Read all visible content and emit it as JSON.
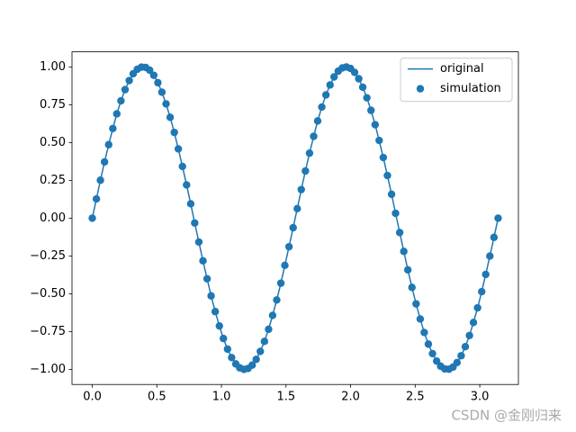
{
  "chart_data": {
    "type": "line",
    "legend": "upper right",
    "watermark": "CSDN @金刚归来",
    "xlim": [
      -0.157,
      3.299
    ],
    "ylim": [
      -1.1,
      1.1
    ],
    "xticks": [
      {
        "value": 0,
        "label": "0.0"
      },
      0.5,
      {
        "value": 1,
        "label": "1.0"
      },
      1.5,
      {
        "value": 2,
        "label": "2.0"
      },
      2.5,
      {
        "value": 3,
        "label": "3.0"
      }
    ],
    "yticks": [
      {
        "value": -1,
        "label": "−1.00"
      },
      {
        "value": -0.75,
        "label": "−0.75"
      },
      {
        "value": -0.5,
        "label": "−0.50"
      },
      {
        "value": -0.25,
        "label": "−0.25"
      },
      {
        "value": 0,
        "label": "0.00"
      },
      {
        "value": 0.25,
        "label": "0.25"
      },
      {
        "value": 0.5,
        "label": "0.50"
      },
      {
        "value": 0.75,
        "label": "0.75"
      },
      {
        "value": 1,
        "label": "1.00"
      }
    ],
    "x": [
      0,
      0.032,
      0.063,
      0.095,
      0.127,
      0.159,
      0.19,
      0.222,
      0.254,
      0.286,
      0.317,
      0.349,
      0.381,
      0.413,
      0.444,
      0.476,
      0.508,
      0.539,
      0.571,
      0.603,
      0.635,
      0.666,
      0.698,
      0.73,
      0.762,
      0.793,
      0.825,
      0.857,
      0.889,
      0.92,
      0.952,
      0.984,
      1.015,
      1.047,
      1.079,
      1.111,
      1.142,
      1.174,
      1.206,
      1.238,
      1.269,
      1.301,
      1.333,
      1.365,
      1.396,
      1.428,
      1.46,
      1.491,
      1.523,
      1.555,
      1.587,
      1.618,
      1.65,
      1.682,
      1.714,
      1.745,
      1.777,
      1.809,
      1.841,
      1.872,
      1.904,
      1.936,
      1.967,
      1.999,
      2.031,
      2.063,
      2.094,
      2.126,
      2.158,
      2.19,
      2.221,
      2.253,
      2.285,
      2.317,
      2.348,
      2.38,
      2.412,
      2.443,
      2.475,
      2.507,
      2.539,
      2.57,
      2.602,
      2.634,
      2.666,
      2.697,
      2.729,
      2.761,
      2.793,
      2.824,
      2.856,
      2.888,
      2.92,
      2.951,
      2.983,
      3.015,
      3.046,
      3.078,
      3.11,
      3.142
    ],
    "series": [
      {
        "name": "original",
        "type": "line",
        "color": "#1f77b4",
        "values": [
          0,
          0.127,
          0.251,
          0.372,
          0.486,
          0.593,
          0.69,
          0.776,
          0.85,
          0.91,
          0.955,
          0.985,
          0.999,
          0.997,
          0.979,
          0.945,
          0.896,
          0.833,
          0.756,
          0.667,
          0.567,
          0.458,
          0.342,
          0.22,
          0.095,
          -0.032,
          -0.158,
          -0.282,
          -0.401,
          -0.514,
          -0.618,
          -0.713,
          -0.796,
          -0.866,
          -0.922,
          -0.964,
          -0.99,
          -1,
          -0.994,
          -0.972,
          -0.934,
          -0.881,
          -0.815,
          -0.735,
          -0.643,
          -0.541,
          -0.43,
          -0.312,
          -0.189,
          -0.063,
          0.063,
          0.189,
          0.312,
          0.43,
          0.541,
          0.643,
          0.735,
          0.815,
          0.881,
          0.934,
          0.972,
          0.994,
          1,
          0.99,
          0.964,
          0.922,
          0.866,
          0.796,
          0.713,
          0.618,
          0.514,
          0.401,
          0.282,
          0.158,
          0.032,
          -0.095,
          -0.22,
          -0.342,
          -0.458,
          -0.567,
          -0.667,
          -0.756,
          -0.833,
          -0.896,
          -0.945,
          -0.979,
          -0.997,
          -0.999,
          -0.985,
          -0.955,
          -0.91,
          -0.85,
          -0.776,
          -0.69,
          -0.593,
          -0.486,
          -0.372,
          -0.251,
          -0.127,
          0
        ]
      },
      {
        "name": "simulation",
        "type": "scatter",
        "color": "#1f77b4",
        "values": [
          0,
          0.127,
          0.251,
          0.372,
          0.486,
          0.593,
          0.69,
          0.776,
          0.85,
          0.91,
          0.955,
          0.985,
          0.999,
          0.997,
          0.979,
          0.945,
          0.896,
          0.833,
          0.756,
          0.667,
          0.567,
          0.458,
          0.342,
          0.22,
          0.095,
          -0.032,
          -0.158,
          -0.282,
          -0.401,
          -0.514,
          -0.618,
          -0.713,
          -0.796,
          -0.866,
          -0.922,
          -0.964,
          -0.99,
          -1,
          -0.994,
          -0.972,
          -0.934,
          -0.881,
          -0.815,
          -0.735,
          -0.643,
          -0.541,
          -0.43,
          -0.312,
          -0.189,
          -0.063,
          0.063,
          0.189,
          0.312,
          0.43,
          0.541,
          0.643,
          0.735,
          0.815,
          0.881,
          0.934,
          0.972,
          0.994,
          1,
          0.99,
          0.964,
          0.922,
          0.866,
          0.796,
          0.713,
          0.618,
          0.514,
          0.401,
          0.282,
          0.158,
          0.032,
          -0.095,
          -0.22,
          -0.342,
          -0.458,
          -0.567,
          -0.667,
          -0.756,
          -0.833,
          -0.896,
          -0.945,
          -0.979,
          -0.997,
          -0.999,
          -0.985,
          -0.955,
          -0.91,
          -0.85,
          -0.776,
          -0.69,
          -0.593,
          -0.486,
          -0.372,
          -0.251,
          -0.127,
          0
        ]
      }
    ]
  }
}
